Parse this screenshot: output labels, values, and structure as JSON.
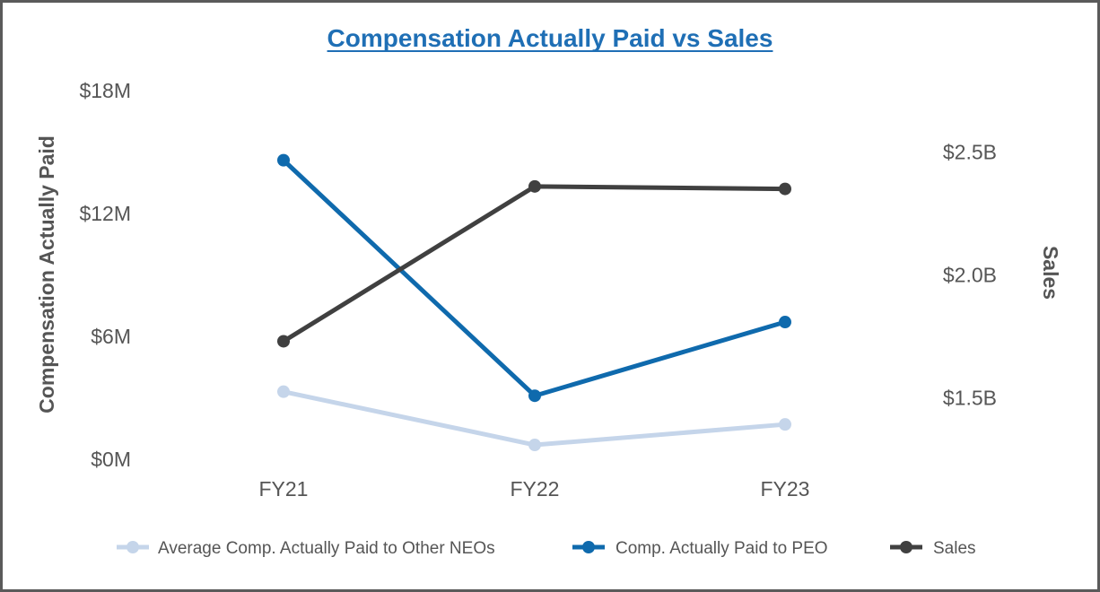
{
  "chart_data": {
    "type": "line",
    "title": "Compensation Actually Paid vs Sales",
    "categories": [
      "FY21",
      "FY22",
      "FY23"
    ],
    "y_left": {
      "label": "Compensation Actually Paid",
      "ylim": [
        0,
        18
      ],
      "ticks": [
        0,
        6,
        12,
        18
      ],
      "tick_labels": [
        "$0M",
        "$6M",
        "$12M",
        "$18M"
      ]
    },
    "y_right": {
      "label": "Sales",
      "ylim": [
        1.25,
        2.75
      ],
      "ticks": [
        1.5,
        2.0,
        2.5
      ],
      "tick_labels": [
        "$1.5B",
        "$2.0B",
        "$2.5B"
      ]
    },
    "series": [
      {
        "name": "Average Comp. Actually Paid to Other NEOs",
        "axis": "left",
        "color": "#c5d5ea",
        "values": [
          3.3,
          0.7,
          1.7
        ]
      },
      {
        "name": "Comp. Actually Paid to PEO",
        "axis": "left",
        "color": "#0f6aad",
        "values": [
          14.6,
          3.1,
          6.7
        ]
      },
      {
        "name": "Sales",
        "axis": "right",
        "color": "#404040",
        "values": [
          1.73,
          2.36,
          2.35
        ]
      }
    ],
    "grid": false,
    "legend": "bottom"
  }
}
